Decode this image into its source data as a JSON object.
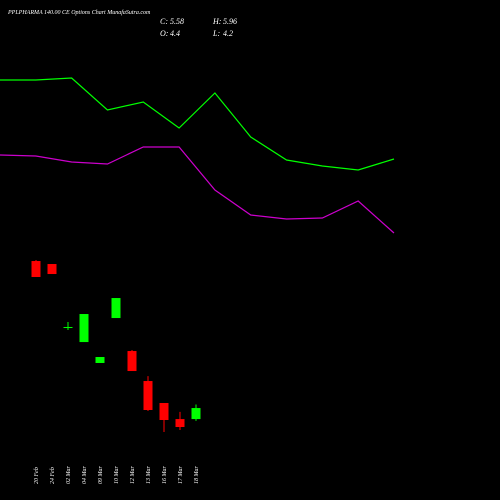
{
  "chart_data": [
    {
      "type": "line",
      "title": "PPLPHARMA 140.00 CE Options Chart MunafaSutra.com",
      "ylim": [
        0,
        100
      ],
      "series": [
        {
          "color": "#00ff00",
          "values": [
            84,
            84,
            84.4,
            78,
            79.6,
            74.4,
            81.4,
            72.6,
            68,
            66.8,
            66,
            68.2
          ]
        },
        {
          "color": "#cc00cc",
          "values": [
            69,
            68.8,
            67.6,
            67.2,
            70.6,
            70.6,
            62,
            57,
            56.2,
            56.4,
            59.8,
            53.4
          ]
        }
      ]
    },
    {
      "type": "candlestick",
      "ohlc_labels": [
        {
          "label": "C:",
          "value": 5.58
        },
        {
          "label": "H:",
          "value": 5.96
        },
        {
          "label": "O:",
          "value": 4.4
        },
        {
          "label": "L:",
          "value": 4.2
        }
      ],
      "categories": [
        "20 Feb",
        "24 Feb",
        "02 Mar",
        "04 Mar",
        "09 Mar",
        "10 Mar",
        "12 Mar",
        "13 Mar",
        "16 Mar",
        "17 Mar",
        "18 Mar"
      ],
      "open": [
        21.31,
        20.99,
        14.25,
        12.64,
        10.4,
        15.21,
        11.68,
        8.47,
        6.12,
        4.4,
        4.4
      ],
      "high": [
        21.42,
        20.99,
        14.78,
        15.64,
        11.04,
        17.35,
        11.79,
        9.0,
        6.12,
        5.17,
        5.96
      ],
      "low": [
        19.6,
        19.92,
        13.93,
        12.64,
        10.4,
        15.21,
        9.54,
        5.26,
        3.01,
        3.23,
        4.2
      ],
      "close": [
        19.6,
        19.92,
        14.25,
        15.64,
        11.04,
        17.35,
        9.54,
        5.37,
        4.3,
        3.55,
        5.58
      ],
      "up_color": "#00ff00",
      "down_color": "#ff0000",
      "ylim": [
        -4.26,
        49.24
      ]
    }
  ]
}
